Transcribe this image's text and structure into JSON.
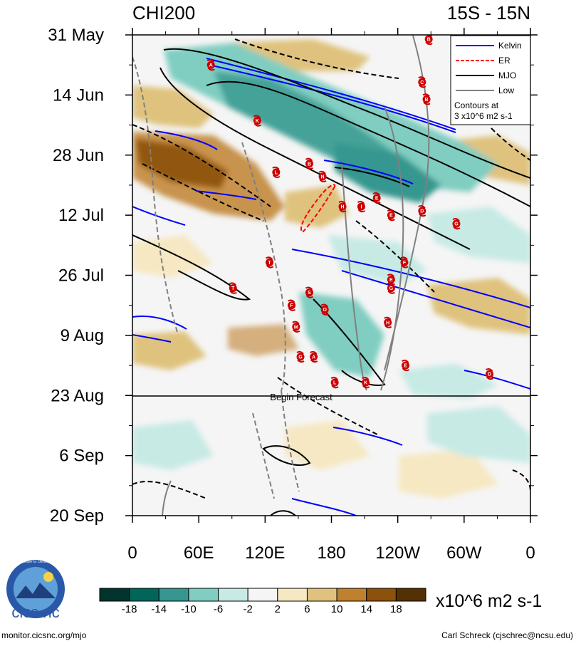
{
  "chart_data": {
    "type": "heatmap",
    "title_left": "CHI200",
    "title_right": "15S - 15N",
    "x_ticks": [
      "0",
      "60E",
      "120E",
      "180",
      "120W",
      "60W",
      "0"
    ],
    "x_range": [
      0,
      360
    ],
    "y_ticks": [
      "31 May",
      "14 Jun",
      "28 Jun",
      "12 Jul",
      "26 Jul",
      "9 Aug",
      "23 Aug",
      "6 Sep",
      "20 Sep"
    ],
    "y_range_days": [
      0,
      112
    ],
    "forecast_label": "Begin Forecast",
    "forecast_day": 84,
    "legend": {
      "entries": [
        {
          "label": "Kelvin",
          "color": "#0000ff"
        },
        {
          "label": "ER",
          "color": "#ff0000"
        },
        {
          "label": "MJO",
          "color": "#000000"
        },
        {
          "label": "Low",
          "color": "#808080"
        }
      ],
      "note_line1": "Contours at",
      "note_line2": "3 x10^6 m2 s-1"
    },
    "colorbar": {
      "levels": [
        "-18",
        "-14",
        "-10",
        "-6",
        "-2",
        "2",
        "6",
        "10",
        "14",
        "18"
      ],
      "colors": [
        "#00342d",
        "#00665c",
        "#35978f",
        "#80cdc1",
        "#c7eae5",
        "#f5f5f5",
        "#f6e8c3",
        "#dfc27d",
        "#bf812d",
        "#8c510a",
        "#543005"
      ],
      "units": "x10^6 m2 s-1"
    },
    "storms": [
      {
        "letter": "B",
        "lon": 268,
        "day": 1
      },
      {
        "letter": "A",
        "lon": 71,
        "day": 7
      },
      {
        "letter": "C",
        "lon": 262,
        "day": 11
      },
      {
        "letter": "B",
        "lon": 266,
        "day": 15
      },
      {
        "letter": "K",
        "lon": 113,
        "day": 20
      },
      {
        "letter": "B",
        "lon": 160,
        "day": 30
      },
      {
        "letter": "L",
        "lon": 130,
        "day": 32
      },
      {
        "letter": "N",
        "lon": 172,
        "day": 33
      },
      {
        "letter": "E",
        "lon": 221,
        "day": 38
      },
      {
        "letter": "H",
        "lon": 190,
        "day": 40
      },
      {
        "letter": "I",
        "lon": 207,
        "day": 40
      },
      {
        "letter": "D",
        "lon": 262,
        "day": 41
      },
      {
        "letter": "E",
        "lon": 234,
        "day": 42
      },
      {
        "letter": "G",
        "lon": 293,
        "day": 44
      },
      {
        "letter": "T",
        "lon": 124,
        "day": 53
      },
      {
        "letter": "F",
        "lon": 246,
        "day": 53
      },
      {
        "letter": "E",
        "lon": 234,
        "day": 57
      },
      {
        "letter": "T",
        "lon": 91,
        "day": 59
      },
      {
        "letter": "G",
        "lon": 234,
        "day": 59
      },
      {
        "letter": "S",
        "lon": 160,
        "day": 60
      },
      {
        "letter": "F",
        "lon": 144,
        "day": 63
      },
      {
        "letter": "O",
        "lon": 174,
        "day": 64
      },
      {
        "letter": "H",
        "lon": 231,
        "day": 67
      },
      {
        "letter": "M",
        "lon": 148,
        "day": 68
      },
      {
        "letter": "G",
        "lon": 152,
        "day": 75
      },
      {
        "letter": "A",
        "lon": 164,
        "day": 75
      },
      {
        "letter": "E",
        "lon": 247,
        "day": 77
      },
      {
        "letter": "D",
        "lon": 323,
        "day": 79
      },
      {
        "letter": "L",
        "lon": 183,
        "day": 81
      },
      {
        "letter": "K",
        "lon": 211,
        "day": 81
      }
    ]
  },
  "footer": {
    "logo_text": "cics.nc",
    "logo_ring_text": "Cooperative Institute for Climate and Satellites",
    "left_url": "monitor.cicsnc.org/mjo",
    "right_credit": "Carl Schreck (cjschrec@ncsu.edu)"
  }
}
